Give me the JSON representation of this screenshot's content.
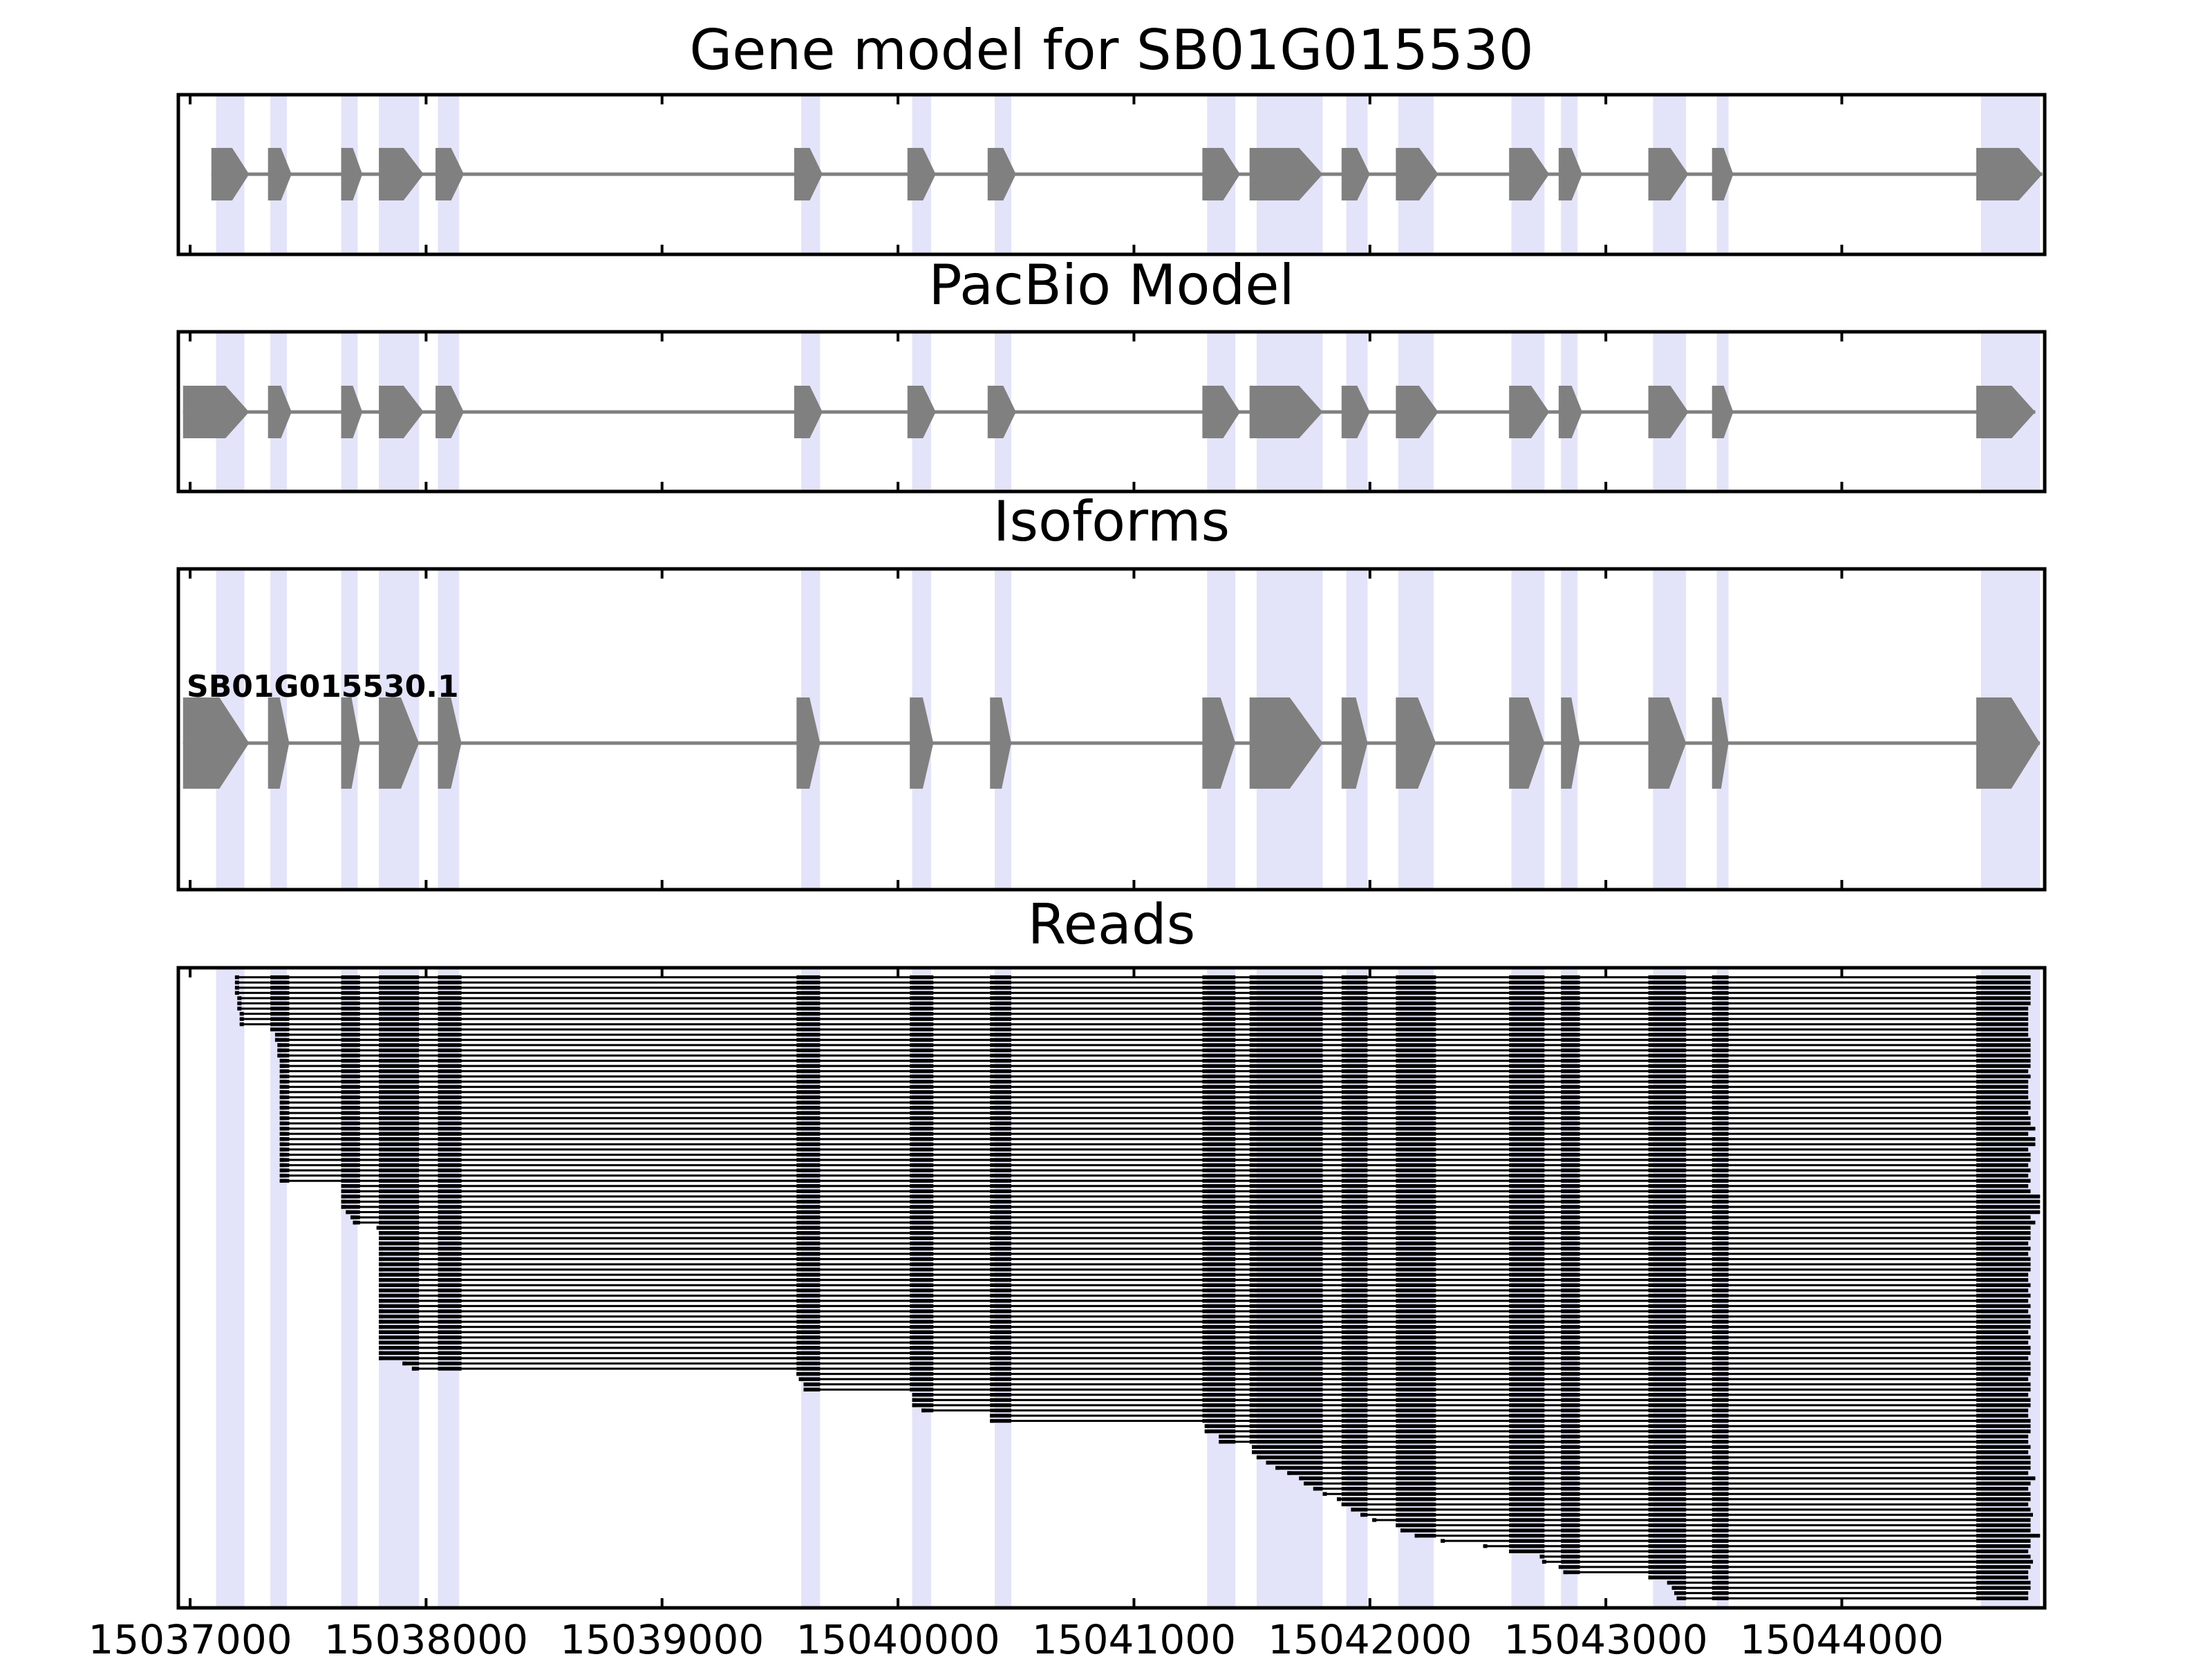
{
  "chart_data": {
    "type": "gene-track",
    "panels": [
      {
        "title": "Gene model for SB01G015530"
      },
      {
        "title": "PacBio Model"
      },
      {
        "title": "Isoforms"
      },
      {
        "title": "Reads"
      }
    ],
    "isoform_label": "SB01G015530.1",
    "x_tick_labels": [
      "15037000",
      "15038000",
      "15039000",
      "15040000",
      "15041000",
      "15042000",
      "15043000",
      "15044000"
    ],
    "x_ticks": [
      15037000,
      15038000,
      15039000,
      15040000,
      15041000,
      15042000,
      15043000,
      15044000
    ],
    "xlim": [
      15036950,
      15044860
    ],
    "strand": "+",
    "highlight_color": "#e3e3fa",
    "feature_color": "#808080",
    "read_color": "#000000",
    "highlight_regions": [
      [
        15037110,
        15037230
      ],
      [
        15037340,
        15037410
      ],
      [
        15037640,
        15037710
      ],
      [
        15037800,
        15037970
      ],
      [
        15038050,
        15038140
      ],
      [
        15039590,
        15039670
      ],
      [
        15040060,
        15040140
      ],
      [
        15040410,
        15040480
      ],
      [
        15041310,
        15041430
      ],
      [
        15041520,
        15041800
      ],
      [
        15041900,
        15041990
      ],
      [
        15042120,
        15042270
      ],
      [
        15042600,
        15042740
      ],
      [
        15042810,
        15042880
      ],
      [
        15043200,
        15043340
      ],
      [
        15043470,
        15043520
      ],
      [
        15044590,
        15044840
      ]
    ],
    "gene_model_exons": [
      [
        15037090,
        15037250
      ],
      [
        15037330,
        15037430
      ],
      [
        15037640,
        15037730
      ],
      [
        15037800,
        15037990
      ],
      [
        15038040,
        15038160
      ],
      [
        15039560,
        15039680
      ],
      [
        15040040,
        15040160
      ],
      [
        15040380,
        15040500
      ],
      [
        15041290,
        15041450
      ],
      [
        15041490,
        15041800
      ],
      [
        15041880,
        15042000
      ],
      [
        15042110,
        15042290
      ],
      [
        15042590,
        15042760
      ],
      [
        15042800,
        15042900
      ],
      [
        15043180,
        15043350
      ],
      [
        15043450,
        15043540
      ],
      [
        15044570,
        15044850
      ]
    ],
    "pacbio_model_exons": [
      [
        15036970,
        15037250
      ],
      [
        15037330,
        15037430
      ],
      [
        15037640,
        15037730
      ],
      [
        15037800,
        15037990
      ],
      [
        15038040,
        15038160
      ],
      [
        15039560,
        15039680
      ],
      [
        15040040,
        15040160
      ],
      [
        15040380,
        15040500
      ],
      [
        15041290,
        15041450
      ],
      [
        15041490,
        15041800
      ],
      [
        15041880,
        15042000
      ],
      [
        15042110,
        15042290
      ],
      [
        15042590,
        15042760
      ],
      [
        15042800,
        15042900
      ],
      [
        15043180,
        15043350
      ],
      [
        15043450,
        15043540
      ],
      [
        15044570,
        15044820
      ]
    ],
    "isoform_exons": [
      [
        15036970,
        15037250
      ],
      [
        15037330,
        15037420
      ],
      [
        15037640,
        15037720
      ],
      [
        15037800,
        15037970
      ],
      [
        15038050,
        15038150
      ],
      [
        15039570,
        15039670
      ],
      [
        15040050,
        15040150
      ],
      [
        15040390,
        15040480
      ],
      [
        15041290,
        15041430
      ],
      [
        15041490,
        15041800
      ],
      [
        15041880,
        15041990
      ],
      [
        15042110,
        15042280
      ],
      [
        15042590,
        15042740
      ],
      [
        15042810,
        15042890
      ],
      [
        15043180,
        15043340
      ],
      [
        15043450,
        15043520
      ],
      [
        15044570,
        15044840
      ]
    ],
    "reads": {
      "count": 120,
      "read_exons": [
        [
          15037340,
          15037420
        ],
        [
          15037640,
          15037720
        ],
        [
          15037800,
          15037970
        ],
        [
          15038050,
          15038150
        ],
        [
          15039570,
          15039670
        ],
        [
          15040050,
          15040150
        ],
        [
          15040390,
          15040480
        ],
        [
          15041290,
          15041430
        ],
        [
          15041490,
          15041800
        ],
        [
          15041880,
          15041990
        ],
        [
          15042110,
          15042280
        ],
        [
          15042590,
          15042740
        ],
        [
          15042810,
          15042890
        ],
        [
          15043180,
          15043340
        ],
        [
          15043450,
          15043520
        ],
        [
          15044570,
          15044800
        ]
      ],
      "read_starts": [
        15037190,
        15037190,
        15037190,
        15037190,
        15037200,
        15037200,
        15037200,
        15037210,
        15037210,
        15037210,
        15037340,
        15037360,
        15037360,
        15037370,
        15037370,
        15037370,
        15037380,
        15037380,
        15037380,
        15037380,
        15037380,
        15037380,
        15037380,
        15037380,
        15037380,
        15037380,
        15037380,
        15037380,
        15037380,
        15037380,
        15037380,
        15037380,
        15037380,
        15037380,
        15037380,
        15037380,
        15037380,
        15037380,
        15037380,
        15037380,
        15037640,
        15037640,
        15037640,
        15037640,
        15037640,
        15037660,
        15037680,
        15037690,
        15037790,
        15037800,
        15037800,
        15037800,
        15037800,
        15037800,
        15037800,
        15037800,
        15037800,
        15037800,
        15037800,
        15037800,
        15037800,
        15037800,
        15037800,
        15037800,
        15037800,
        15037800,
        15037800,
        15037800,
        15037800,
        15037800,
        15037800,
        15037800,
        15037800,
        15037800,
        15037900,
        15037940,
        15039570,
        15039580,
        15039600,
        15039600,
        15040060,
        15040060,
        15040060,
        15040100,
        15040390,
        15040390,
        15041300,
        15041300,
        15041360,
        15041360,
        15041500,
        15041500,
        15041520,
        15041560,
        15041600,
        15041650,
        15041700,
        15041720,
        15041760,
        15041800,
        15041860,
        15041880,
        15041920,
        15041960,
        15042010,
        15042110,
        15042130,
        15042190,
        15042300,
        15042480,
        15042590,
        15042720,
        15042730,
        15042800,
        15042820,
        15043180,
        15043260,
        15043280,
        15043290,
        15043300
      ],
      "read_ends": [
        15044800,
        15044800,
        15044800,
        15044800,
        15044800,
        15044800,
        15044790,
        15044790,
        15044790,
        15044790,
        15044790,
        15044790,
        15044800,
        15044800,
        15044800,
        15044800,
        15044800,
        15044800,
        15044790,
        15044800,
        15044790,
        15044790,
        15044790,
        15044790,
        15044800,
        15044800,
        15044790,
        15044800,
        15044800,
        15044820,
        15044790,
        15044820,
        15044820,
        15044790,
        15044800,
        15044800,
        15044790,
        15044800,
        15044790,
        15044800,
        15044790,
        15044800,
        15044840,
        15044840,
        15044840,
        15044840,
        15044800,
        15044820,
        15044800,
        15044800,
        15044800,
        15044790,
        15044800,
        15044790,
        15044800,
        15044800,
        15044800,
        15044790,
        15044790,
        15044800,
        15044790,
        15044800,
        15044790,
        15044800,
        15044790,
        15044800,
        15044800,
        15044800,
        15044790,
        15044800,
        15044790,
        15044800,
        15044800,
        15044790,
        15044800,
        15044800,
        15044800,
        15044790,
        15044800,
        15044800,
        15044790,
        15044800,
        15044800,
        15044790,
        15044790,
        15044800,
        15044800,
        15044800,
        15044790,
        15044790,
        15044800,
        15044790,
        15044800,
        15044800,
        15044800,
        15044790,
        15044820,
        15044800,
        15044790,
        15044800,
        15044800,
        15044790,
        15044800,
        15044810,
        15044800,
        15044800,
        15044800,
        15044840,
        15044800,
        15044800,
        15044790,
        15044800,
        15044810,
        15044800,
        15044790,
        15044790,
        15044800,
        15044800,
        15044790,
        15044790
      ]
    }
  }
}
